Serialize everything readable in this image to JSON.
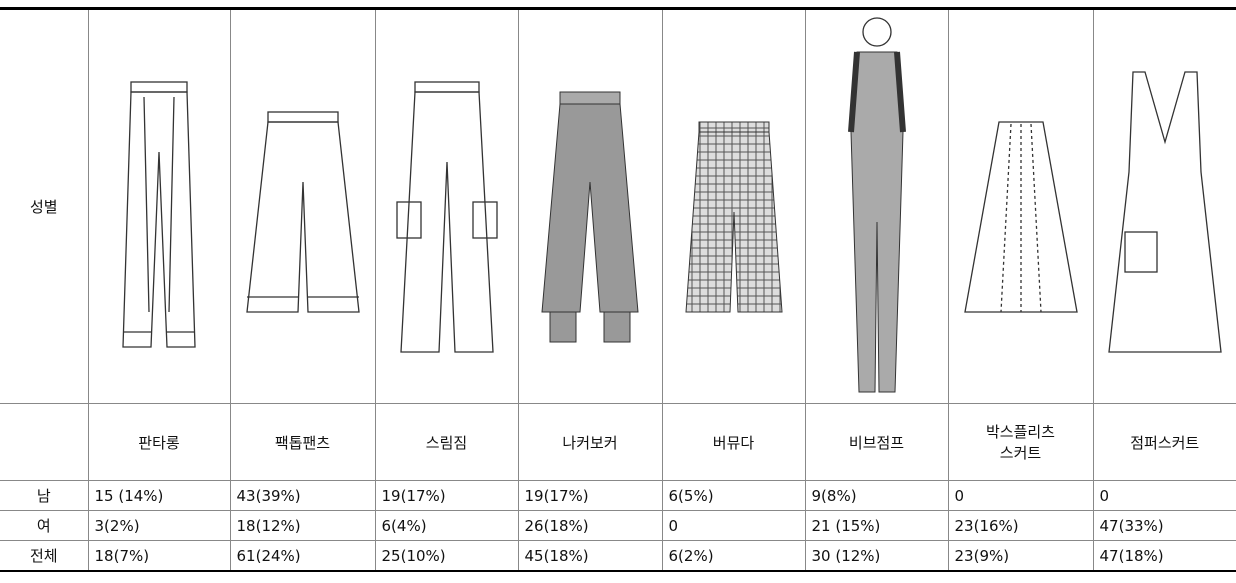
{
  "table": {
    "header_label": "성별",
    "items": [
      [
        "판타롱"
      ],
      [
        "팩톱팬츠"
      ],
      [
        "스림짐"
      ],
      [
        "나커보커"
      ],
      [
        "버뮤다"
      ],
      [
        "비브점프"
      ],
      [
        "박스플리츠",
        "스커트"
      ],
      [
        "점퍼스커트"
      ]
    ],
    "rows": [
      {
        "label": "남",
        "cells": [
          "15 (14%)",
          "43(39%)",
          "19(17%)",
          "19(17%)",
          "6(5%)",
          "9(8%)",
          "0",
          "0"
        ]
      },
      {
        "label": "여",
        "cells": [
          "3(2%)",
          "18(12%)",
          "6(4%)",
          "26(18%)",
          "0",
          "21 (15%)",
          "23(16%)",
          "47(33%)"
        ]
      },
      {
        "label": "전체",
        "cells": [
          "18(7%)",
          "61(24%)",
          "25(10%)",
          "45(18%)",
          "6(2%)",
          "30 (12%)",
          "23(9%)",
          "47(18%)"
        ]
      }
    ]
  }
}
